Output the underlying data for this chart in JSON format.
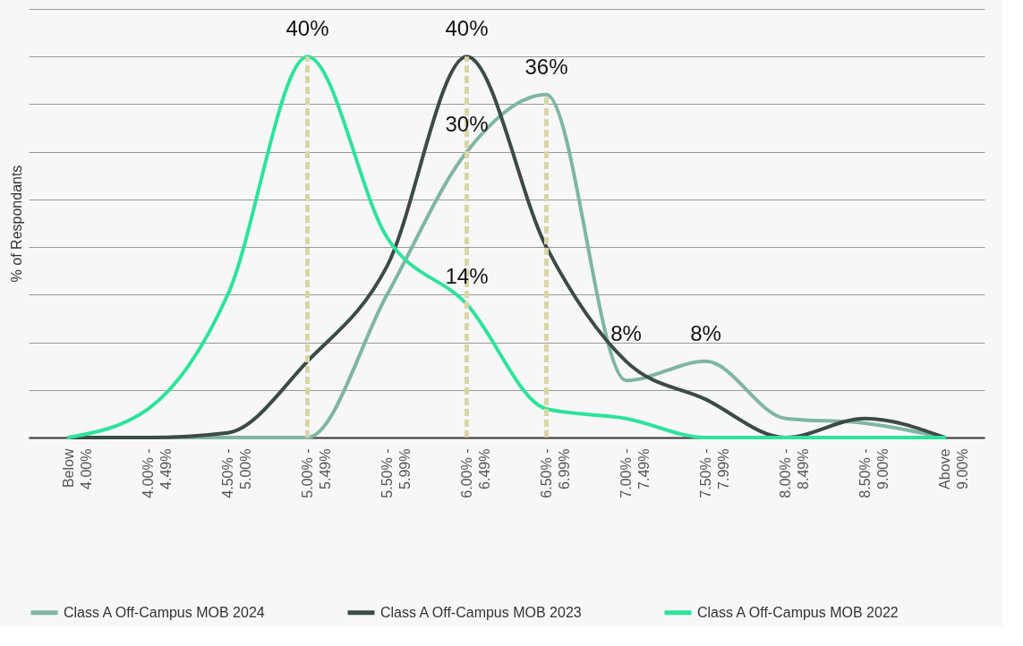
{
  "chart_data": {
    "type": "line",
    "ylabel": "% of Respondants",
    "categories": [
      "Below 4.00%",
      "4.00% - 4.49%",
      "4.50% - 5.00%",
      "5.00% - 5.49%",
      "5.50% - 5.99%",
      "6.00% - 6.49%",
      "6.50% - 6.99%",
      "7.00% - 7.49%",
      "7.50% - 7.99%",
      "8.00% - 8.49%",
      "8.50% - 9.00%",
      "Above 9.00%"
    ],
    "series": [
      {
        "name": "Class A Off-Campus MOB 2024",
        "color": "#7fb5a5",
        "values": [
          0,
          0,
          0,
          0,
          15,
          30,
          36,
          6,
          8,
          2,
          1.5,
          0
        ],
        "value_labels": [
          null,
          null,
          null,
          null,
          null,
          "30%",
          "36%",
          null,
          "8%",
          null,
          null,
          null
        ]
      },
      {
        "name": "Class A Off-Campus MOB 2023",
        "color": "#3c4a48",
        "values": [
          0,
          0,
          0.5,
          8,
          18,
          40,
          20,
          8,
          4,
          0,
          2,
          0
        ],
        "value_labels": [
          null,
          null,
          null,
          null,
          null,
          "40%",
          null,
          "8%",
          null,
          null,
          null,
          null
        ]
      },
      {
        "name": "Class A Off-Campus MOB 2022",
        "color": "#2de39a",
        "values": [
          0,
          3,
          15,
          40,
          21,
          14,
          3,
          2,
          0,
          0,
          0,
          0
        ],
        "value_labels": [
          null,
          null,
          null,
          "40%",
          null,
          "14%",
          null,
          null,
          null,
          null,
          null,
          null
        ]
      }
    ],
    "ylim": [
      0,
      45
    ],
    "yticks": [
      {
        "value": 0,
        "label": null
      },
      {
        "value": 5,
        "label": null
      },
      {
        "value": 10,
        "label": null
      },
      {
        "value": 15,
        "label": null
      },
      {
        "value": 20,
        "label": null
      },
      {
        "value": 25,
        "label": null
      },
      {
        "value": 30,
        "label": null
      },
      {
        "value": 35,
        "label": null
      },
      {
        "value": 40,
        "label": null
      },
      {
        "value": 45,
        "label": null
      }
    ],
    "grid": "y",
    "legend": "bottom",
    "line_style": "solid",
    "ref_lines": [
      {
        "axis": "x",
        "value": "5.00% - 5.49%",
        "label": null,
        "color": "#d8d6a8",
        "line_style": "dashed"
      },
      {
        "axis": "x",
        "value": "6.00% - 6.49%",
        "label": null,
        "color": "#d8d6a8",
        "line_style": "dashed"
      },
      {
        "axis": "x",
        "value": "6.50% - 6.99%",
        "label": null,
        "color": "#d8d6a8",
        "line_style": "dashed"
      }
    ]
  }
}
